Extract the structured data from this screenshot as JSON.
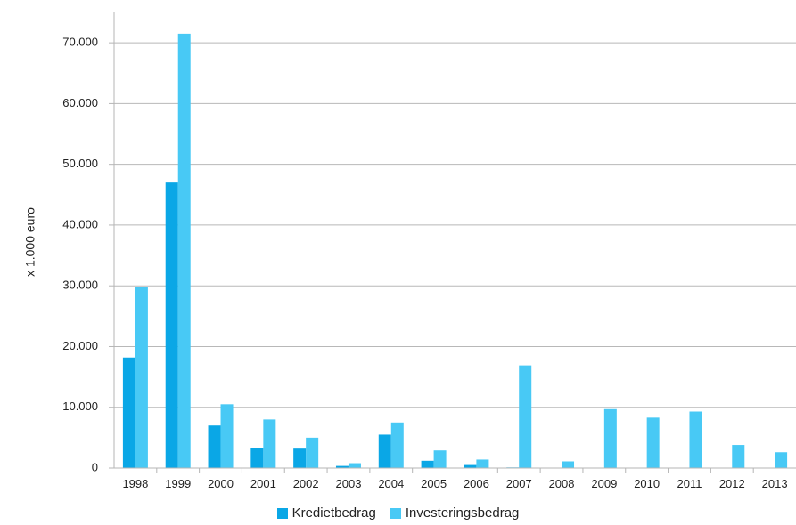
{
  "chart_data": {
    "type": "bar",
    "title": "",
    "xlabel": "",
    "ylabel": "x 1.000 euro",
    "categories": [
      "1998",
      "1999",
      "2000",
      "2001",
      "2002",
      "2003",
      "2004",
      "2005",
      "2006",
      "2007",
      "2008",
      "2009",
      "2010",
      "2011",
      "2012",
      "2013"
    ],
    "series": [
      {
        "name": "Kredietbedrag",
        "color": "#0aa7e6",
        "values": [
          18200,
          47000,
          7000,
          3300,
          3200,
          350,
          5500,
          1200,
          500,
          100,
          0,
          0,
          0,
          0,
          0,
          0
        ]
      },
      {
        "name": "Investeringsbedrag",
        "color": "#48c9f5",
        "values": [
          29800,
          71500,
          10500,
          8000,
          5000,
          800,
          7500,
          2900,
          1400,
          16900,
          1100,
          9700,
          8300,
          9300,
          3800,
          2600
        ]
      }
    ],
    "ylim": [
      0,
      75000
    ],
    "yticks": [
      0,
      10000,
      20000,
      30000,
      40000,
      50000,
      60000,
      70000
    ],
    "ytick_labels": [
      "0",
      "10.000",
      "20.000",
      "30.000",
      "40.000",
      "50.000",
      "60.000",
      "70.000"
    ],
    "grid": true,
    "legend_position": "bottom-center"
  }
}
